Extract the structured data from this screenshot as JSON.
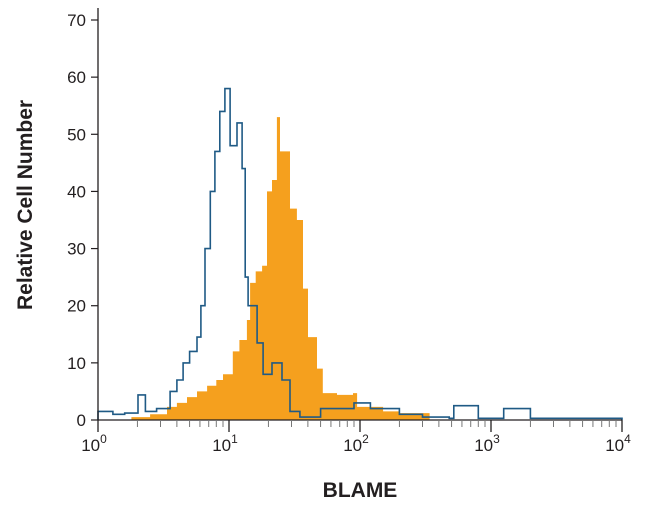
{
  "chart_data": {
    "type": "area",
    "title": "",
    "xlabel": "BLAME",
    "ylabel": "Relative Cell Number",
    "xscale": "log",
    "xlim": [
      1,
      10000
    ],
    "ylim": [
      0,
      70
    ],
    "xticks": [
      {
        "base": "10",
        "exp": "0"
      },
      {
        "base": "10",
        "exp": "1"
      },
      {
        "base": "10",
        "exp": "2"
      },
      {
        "base": "10",
        "exp": "3"
      },
      {
        "base": "10",
        "exp": "4"
      }
    ],
    "yticks": [
      "0",
      "10",
      "20",
      "30",
      "40",
      "50",
      "60",
      "70"
    ],
    "grid": false,
    "series": [
      {
        "style": "outline",
        "color": "#1f5a85",
        "x": [
          1,
          1.3,
          1.6,
          2.02,
          2.3,
          2.8,
          3.55,
          4.0,
          4.46,
          5.0,
          5.7,
          6.1,
          6.56,
          7.2,
          7.8,
          8.5,
          9.3,
          10.2,
          11.5,
          12.6,
          13.3,
          14,
          16.4,
          18.2,
          21.3,
          25.4,
          29.2,
          34.8,
          50,
          70,
          90,
          120,
          200,
          300,
          480,
          520,
          800,
          1150,
          1250,
          2000,
          10000
        ],
        "y": [
          1.5,
          1,
          1.2,
          4.4,
          1.5,
          2,
          5,
          7,
          10,
          12,
          14.5,
          20,
          30,
          40,
          47,
          54,
          58,
          48,
          52,
          44,
          25,
          20,
          13.5,
          8,
          10,
          7,
          1.5,
          0.5,
          2,
          2,
          3,
          2,
          1,
          0.5,
          0.3,
          2.5,
          0.3,
          0.3,
          2,
          0.3,
          0
        ]
      },
      {
        "style": "filled",
        "color": "#f5a01e",
        "x": [
          1.8,
          2.5,
          3.36,
          4.0,
          4.78,
          5.7,
          6.8,
          8.0,
          9.0,
          10.7,
          12,
          13.7,
          14.5,
          16,
          17.9,
          19.5,
          21.3,
          23.2,
          24.5,
          27.7,
          29.2,
          33,
          36.7,
          40.1,
          47,
          52,
          66.7,
          88.5,
          95,
          150,
          200,
          340
        ],
        "y": [
          0.5,
          1,
          2.3,
          3,
          4,
          5,
          6,
          7,
          8,
          12,
          14,
          17.5,
          24,
          26,
          27,
          40,
          42,
          53,
          47,
          47,
          37,
          35,
          23,
          14.5,
          9,
          4.7,
          4.4,
          4.7,
          2.3,
          1.5,
          1.2,
          0
        ]
      }
    ]
  }
}
